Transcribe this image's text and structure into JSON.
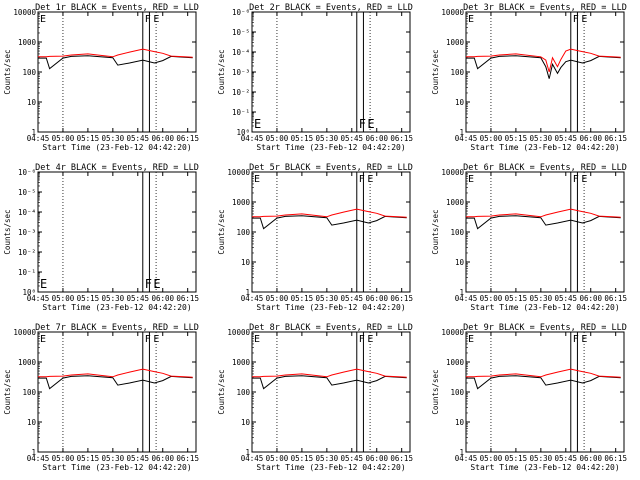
{
  "colors": {
    "events": "#000000",
    "lld": "#ff0000",
    "background": "#ffffff"
  },
  "chart_data": [
    {
      "type": "line",
      "title": "Det 1r BLACK = Events, RED = LLD",
      "xlabel": "Start Time (23-Feb-12 04:42:20)",
      "ylabel": "Counts/sec",
      "yscale": "log",
      "ylim": [
        1,
        10000
      ],
      "yticks": [
        "1",
        "10",
        "100",
        "1000",
        "10000"
      ],
      "xticks": [
        "04:45",
        "05:00",
        "05:15",
        "05:30",
        "05:45",
        "06:00",
        "06:15"
      ],
      "xlim": [
        "04:45",
        "06:20"
      ],
      "flag_labels": [
        "F",
        "E"
      ],
      "flag_labels_position": "top",
      "has_data": true,
      "series": [
        {
          "color": "#000000",
          "x": [
            "04:45",
            "04:50",
            "04:52",
            "05:00",
            "05:05",
            "05:15",
            "05:30",
            "05:33",
            "05:40",
            "05:48",
            "05:55",
            "06:00",
            "06:05",
            "06:13",
            "06:18"
          ],
          "values": [
            290,
            290,
            130,
            290,
            330,
            350,
            300,
            170,
            200,
            250,
            200,
            240,
            330,
            310,
            300
          ]
        },
        {
          "color": "#ff0000",
          "x": [
            "04:45",
            "04:50",
            "04:52",
            "05:00",
            "05:05",
            "05:15",
            "05:30",
            "05:33",
            "05:40",
            "05:48",
            "05:55",
            "06:00",
            "06:05",
            "06:13",
            "06:18"
          ],
          "values": [
            320,
            320,
            330,
            340,
            370,
            400,
            320,
            370,
            460,
            580,
            480,
            420,
            340,
            320,
            310
          ]
        }
      ]
    },
    {
      "type": "line",
      "title": "Det 2r BLACK = Events, RED = LLD",
      "xlabel": "Start Time (23-Feb-12 04:42:20)",
      "ylabel": "Counts/sec",
      "yscale": "log",
      "ylim": [
        1,
        1e-06
      ],
      "yticks": [
        "10⁰",
        "10⁻¹",
        "10⁻²",
        "10⁻³",
        "10⁻⁴",
        "10⁻⁵",
        "10⁻⁶"
      ],
      "xticks": [
        "04:45",
        "05:00",
        "05:15",
        "05:30",
        "05:45",
        "06:00",
        "06:15"
      ],
      "xlim": [
        "04:45",
        "06:20"
      ],
      "flag_labels": [
        "F",
        "E"
      ],
      "flag_labels_position": "bottom",
      "has_data": false,
      "series": []
    },
    {
      "type": "line",
      "title": "Det 3r BLACK = Events, RED = LLD",
      "xlabel": "Start Time (23-Feb-12 04:42:20)",
      "ylabel": "Counts/sec",
      "yscale": "log",
      "ylim": [
        1,
        10000
      ],
      "yticks": [
        "1",
        "10",
        "100",
        "1000",
        "10000"
      ],
      "xticks": [
        "04:45",
        "05:00",
        "05:15",
        "05:30",
        "05:45",
        "06:00",
        "06:15"
      ],
      "xlim": [
        "04:45",
        "06:20"
      ],
      "flag_labels": [
        "F",
        "E"
      ],
      "flag_labels_position": "top",
      "has_data": true,
      "series": [
        {
          "color": "#000000",
          "x": [
            "04:45",
            "04:50",
            "04:52",
            "05:00",
            "05:05",
            "05:15",
            "05:30",
            "05:33",
            "05:35",
            "05:37",
            "05:40",
            "05:42",
            "05:45",
            "05:48",
            "05:55",
            "06:00",
            "06:05",
            "06:13",
            "06:18"
          ],
          "values": [
            290,
            290,
            130,
            290,
            330,
            350,
            300,
            150,
            60,
            180,
            90,
            140,
            220,
            250,
            200,
            240,
            330,
            310,
            300
          ]
        },
        {
          "color": "#ff0000",
          "x": [
            "04:45",
            "04:50",
            "04:52",
            "05:00",
            "05:05",
            "05:15",
            "05:30",
            "05:33",
            "05:35",
            "05:37",
            "05:40",
            "05:42",
            "05:45",
            "05:48",
            "05:55",
            "06:00",
            "06:05",
            "06:13",
            "06:18"
          ],
          "values": [
            320,
            320,
            330,
            340,
            370,
            400,
            320,
            250,
            100,
            300,
            150,
            260,
            500,
            580,
            480,
            420,
            340,
            320,
            310
          ]
        }
      ]
    },
    {
      "type": "line",
      "title": "Det 4r BLACK = Events, RED = LLD",
      "xlabel": "Start Time (23-Feb-12 04:42:20)",
      "ylabel": "Counts/sec",
      "yscale": "log",
      "ylim": [
        1,
        1e-06
      ],
      "yticks": [
        "10⁰",
        "10⁻¹",
        "10⁻²",
        "10⁻³",
        "10⁻⁴",
        "10⁻⁵",
        "10⁻⁶"
      ],
      "xticks": [
        "04:45",
        "05:00",
        "05:15",
        "05:30",
        "05:45",
        "06:00",
        "06:15"
      ],
      "xlim": [
        "04:45",
        "06:20"
      ],
      "flag_labels": [
        "F",
        "E"
      ],
      "flag_labels_position": "bottom",
      "has_data": false,
      "series": []
    },
    {
      "type": "line",
      "title": "Det 5r BLACK = Events, RED = LLD",
      "xlabel": "Start Time (23-Feb-12 04:42:20)",
      "ylabel": "Counts/sec",
      "yscale": "log",
      "ylim": [
        1,
        10000
      ],
      "yticks": [
        "1",
        "10",
        "100",
        "1000",
        "10000"
      ],
      "xticks": [
        "04:45",
        "05:00",
        "05:15",
        "05:30",
        "05:45",
        "06:00",
        "06:15"
      ],
      "xlim": [
        "04:45",
        "06:20"
      ],
      "flag_labels": [
        "F",
        "E"
      ],
      "flag_labels_position": "top",
      "has_data": true,
      "series": [
        {
          "color": "#000000",
          "x": [
            "04:45",
            "04:50",
            "04:52",
            "05:00",
            "05:05",
            "05:15",
            "05:30",
            "05:33",
            "05:40",
            "05:48",
            "05:55",
            "06:00",
            "06:05",
            "06:13",
            "06:18"
          ],
          "values": [
            290,
            290,
            130,
            290,
            330,
            350,
            300,
            170,
            200,
            250,
            200,
            240,
            330,
            310,
            300
          ]
        },
        {
          "color": "#ff0000",
          "x": [
            "04:45",
            "04:50",
            "04:52",
            "05:00",
            "05:05",
            "05:15",
            "05:30",
            "05:33",
            "05:40",
            "05:48",
            "05:55",
            "06:00",
            "06:05",
            "06:13",
            "06:18"
          ],
          "values": [
            320,
            320,
            330,
            340,
            370,
            400,
            320,
            370,
            460,
            580,
            480,
            420,
            340,
            320,
            310
          ]
        }
      ]
    },
    {
      "type": "line",
      "title": "Det 6r BLACK = Events, RED = LLD",
      "xlabel": "Start Time (23-Feb-12 04:42:20)",
      "ylabel": "Counts/sec",
      "yscale": "log",
      "ylim": [
        1,
        10000
      ],
      "yticks": [
        "1",
        "10",
        "100",
        "1000",
        "10000"
      ],
      "xticks": [
        "04:45",
        "05:00",
        "05:15",
        "05:30",
        "05:45",
        "06:00",
        "06:15"
      ],
      "xlim": [
        "04:45",
        "06:20"
      ],
      "flag_labels": [
        "F",
        "E"
      ],
      "flag_labels_position": "top",
      "has_data": true,
      "series": [
        {
          "color": "#000000",
          "x": [
            "04:45",
            "04:50",
            "04:52",
            "05:00",
            "05:05",
            "05:15",
            "05:30",
            "05:33",
            "05:40",
            "05:48",
            "05:55",
            "06:00",
            "06:05",
            "06:13",
            "06:18"
          ],
          "values": [
            290,
            290,
            130,
            290,
            330,
            350,
            300,
            170,
            200,
            250,
            200,
            240,
            330,
            310,
            300
          ]
        },
        {
          "color": "#ff0000",
          "x": [
            "04:45",
            "04:50",
            "04:52",
            "05:00",
            "05:05",
            "05:15",
            "05:30",
            "05:33",
            "05:40",
            "05:48",
            "05:55",
            "06:00",
            "06:05",
            "06:13",
            "06:18"
          ],
          "values": [
            320,
            320,
            330,
            340,
            370,
            400,
            320,
            370,
            460,
            580,
            480,
            420,
            340,
            320,
            310
          ]
        }
      ]
    },
    {
      "type": "line",
      "title": "Det 7r BLACK = Events, RED = LLD",
      "xlabel": "Start Time (23-Feb-12 04:42:20)",
      "ylabel": "Counts/sec",
      "yscale": "log",
      "ylim": [
        1,
        10000
      ],
      "yticks": [
        "1",
        "10",
        "100",
        "1000",
        "10000"
      ],
      "xticks": [
        "04:45",
        "05:00",
        "05:15",
        "05:30",
        "05:45",
        "06:00",
        "06:15"
      ],
      "xlim": [
        "04:45",
        "06:20"
      ],
      "flag_labels": [
        "F",
        "E"
      ],
      "flag_labels_position": "top",
      "has_data": true,
      "series": [
        {
          "color": "#000000",
          "x": [
            "04:45",
            "04:50",
            "04:52",
            "05:00",
            "05:05",
            "05:15",
            "05:30",
            "05:33",
            "05:40",
            "05:48",
            "05:55",
            "06:00",
            "06:05",
            "06:13",
            "06:18"
          ],
          "values": [
            290,
            290,
            130,
            290,
            330,
            350,
            300,
            170,
            200,
            250,
            200,
            240,
            330,
            310,
            300
          ]
        },
        {
          "color": "#ff0000",
          "x": [
            "04:45",
            "04:50",
            "04:52",
            "05:00",
            "05:05",
            "05:15",
            "05:30",
            "05:33",
            "05:40",
            "05:48",
            "05:55",
            "06:00",
            "06:05",
            "06:13",
            "06:18"
          ],
          "values": [
            320,
            320,
            330,
            340,
            370,
            400,
            320,
            370,
            460,
            580,
            480,
            420,
            340,
            320,
            310
          ]
        }
      ]
    },
    {
      "type": "line",
      "title": "Det 8r BLACK = Events, RED = LLD",
      "xlabel": "Start Time (23-Feb-12 04:42:20)",
      "ylabel": "Counts/sec",
      "yscale": "log",
      "ylim": [
        1,
        10000
      ],
      "yticks": [
        "1",
        "10",
        "100",
        "1000",
        "10000"
      ],
      "xticks": [
        "04:45",
        "05:00",
        "05:15",
        "05:30",
        "05:45",
        "06:00",
        "06:15"
      ],
      "xlim": [
        "04:45",
        "06:20"
      ],
      "flag_labels": [
        "F",
        "E"
      ],
      "flag_labels_position": "top",
      "has_data": true,
      "series": [
        {
          "color": "#000000",
          "x": [
            "04:45",
            "04:50",
            "04:52",
            "05:00",
            "05:05",
            "05:15",
            "05:30",
            "05:33",
            "05:40",
            "05:48",
            "05:55",
            "06:00",
            "06:05",
            "06:13",
            "06:18"
          ],
          "values": [
            290,
            290,
            130,
            290,
            330,
            350,
            300,
            170,
            200,
            250,
            200,
            240,
            330,
            310,
            300
          ]
        },
        {
          "color": "#ff0000",
          "x": [
            "04:45",
            "04:50",
            "04:52",
            "05:00",
            "05:05",
            "05:15",
            "05:30",
            "05:33",
            "05:40",
            "05:48",
            "05:55",
            "06:00",
            "06:05",
            "06:13",
            "06:18"
          ],
          "values": [
            320,
            320,
            330,
            340,
            370,
            400,
            320,
            370,
            460,
            580,
            480,
            420,
            340,
            320,
            310
          ]
        }
      ]
    },
    {
      "type": "line",
      "title": "Det 9r BLACK = Events, RED = LLD",
      "xlabel": "Start Time (23-Feb-12 04:42:20)",
      "ylabel": "Counts/sec",
      "yscale": "log",
      "ylim": [
        1,
        10000
      ],
      "yticks": [
        "1",
        "10",
        "100",
        "1000",
        "10000"
      ],
      "xticks": [
        "04:45",
        "05:00",
        "05:15",
        "05:30",
        "05:45",
        "06:00",
        "06:15"
      ],
      "xlim": [
        "04:45",
        "06:20"
      ],
      "flag_labels": [
        "F",
        "E"
      ],
      "flag_labels_position": "top",
      "has_data": true,
      "series": [
        {
          "color": "#000000",
          "x": [
            "04:45",
            "04:50",
            "04:52",
            "05:00",
            "05:05",
            "05:15",
            "05:30",
            "05:33",
            "05:40",
            "05:48",
            "05:55",
            "06:00",
            "06:05",
            "06:13",
            "06:18"
          ],
          "values": [
            290,
            290,
            130,
            290,
            330,
            350,
            300,
            170,
            200,
            250,
            200,
            240,
            330,
            310,
            300
          ]
        },
        {
          "color": "#ff0000",
          "x": [
            "04:45",
            "04:50",
            "04:52",
            "05:00",
            "05:05",
            "05:15",
            "05:30",
            "05:33",
            "05:40",
            "05:48",
            "05:55",
            "06:00",
            "06:05",
            "06:13",
            "06:18"
          ],
          "values": [
            320,
            320,
            330,
            340,
            370,
            400,
            320,
            370,
            460,
            580,
            480,
            420,
            340,
            320,
            310
          ]
        }
      ]
    }
  ]
}
